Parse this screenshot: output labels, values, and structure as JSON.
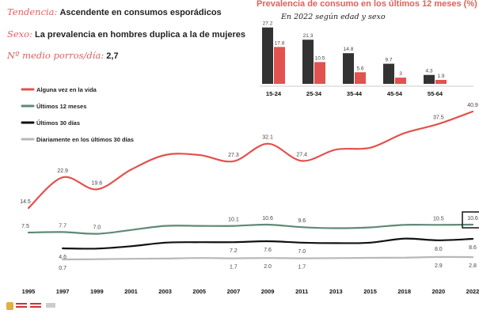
{
  "header": {
    "tendencia_key": "Tendencia:",
    "tendencia_value": "Ascendente en consumos esporádicos",
    "sexo_key": "Sexo:",
    "sexo_value": "La prevalencia en hombres duplica a la de mujeres",
    "porros_key": "Nº medio porros/día:",
    "porros_value": "2,7"
  },
  "colors": {
    "red": "#e2524e",
    "green": "#5f8a75",
    "black": "#111111",
    "gray": "#b8b8b8",
    "dark_bar": "#333333"
  },
  "chart_data": [
    {
      "type": "line",
      "x": [
        "1995",
        "1997",
        "1999",
        "2001",
        "2003",
        "2005",
        "2007",
        "2009",
        "2011",
        "2013",
        "2015",
        "2018",
        "2020",
        "2022"
      ],
      "legend_position": "top-left",
      "grid": false,
      "series": [
        {
          "name": "Alguna vez en la vida",
          "color": "#e2524e",
          "values": [
            14.5,
            22.9,
            19.6,
            25.0,
            29.0,
            29.0,
            27.3,
            32.1,
            27.4,
            30.5,
            31.0,
            35.0,
            37.5,
            40.9
          ],
          "labels": [
            "14.5",
            "22.9",
            "19.6",
            "",
            "",
            "",
            "27.3",
            "32.1",
            "27.4",
            "",
            "",
            "",
            "37.5",
            "40.9"
          ]
        },
        {
          "name": "Últimos 12 meses",
          "color": "#5f8a75",
          "values": [
            7.5,
            7.7,
            7.0,
            8.5,
            10.1,
            10.1,
            10.1,
            10.6,
            9.6,
            9.2,
            9.5,
            10.5,
            10.5,
            10.6
          ],
          "labels": [
            "7.5",
            "7.7",
            "7.0",
            "",
            "",
            "",
            "10.1",
            "10.6",
            "9.6",
            "",
            "",
            "",
            "10.5",
            "10.6"
          ]
        },
        {
          "name": "Últimos 30 días",
          "color": "#111111",
          "values": [
            null,
            4.6,
            4.5,
            5.5,
            7.0,
            7.2,
            7.2,
            7.6,
            7.0,
            6.8,
            7.0,
            8.7,
            8.0,
            8.6
          ],
          "labels": [
            "",
            "4.6",
            "",
            "",
            "",
            "",
            "7.2",
            "7.6",
            "7.0",
            "",
            "",
            "",
            "8.0",
            "8.6"
          ]
        },
        {
          "name": "Diariamente en los últimos 30 días",
          "color": "#b8b8b8",
          "values": [
            null,
            0.7,
            0.9,
            1.3,
            1.5,
            2.0,
            1.7,
            2.0,
            1.7,
            1.9,
            2.1,
            2.3,
            2.9,
            2.8
          ],
          "labels": [
            "",
            "0.7",
            "",
            "",
            "",
            "",
            "1.7",
            "2.0",
            "1.7",
            "",
            "",
            "",
            "2.9",
            "2.8"
          ]
        }
      ],
      "highlight": {
        "series_index": 1,
        "x": "2022"
      }
    },
    {
      "type": "bar",
      "title": "Prevalencia de consumo en los últimos 12 meses (%)",
      "subtitle": "En 2022 según edad y sexo",
      "categories": [
        "15-24",
        "25-34",
        "35-44",
        "45-54",
        "55-64"
      ],
      "series": [
        {
          "color": "#333333",
          "values": [
            27.2,
            21.3,
            14.8,
            9.7,
            4.3
          ]
        },
        {
          "color": "#e2524e",
          "values": [
            17.8,
            10.5,
            5.6,
            3.0,
            1.9
          ]
        }
      ]
    }
  ]
}
